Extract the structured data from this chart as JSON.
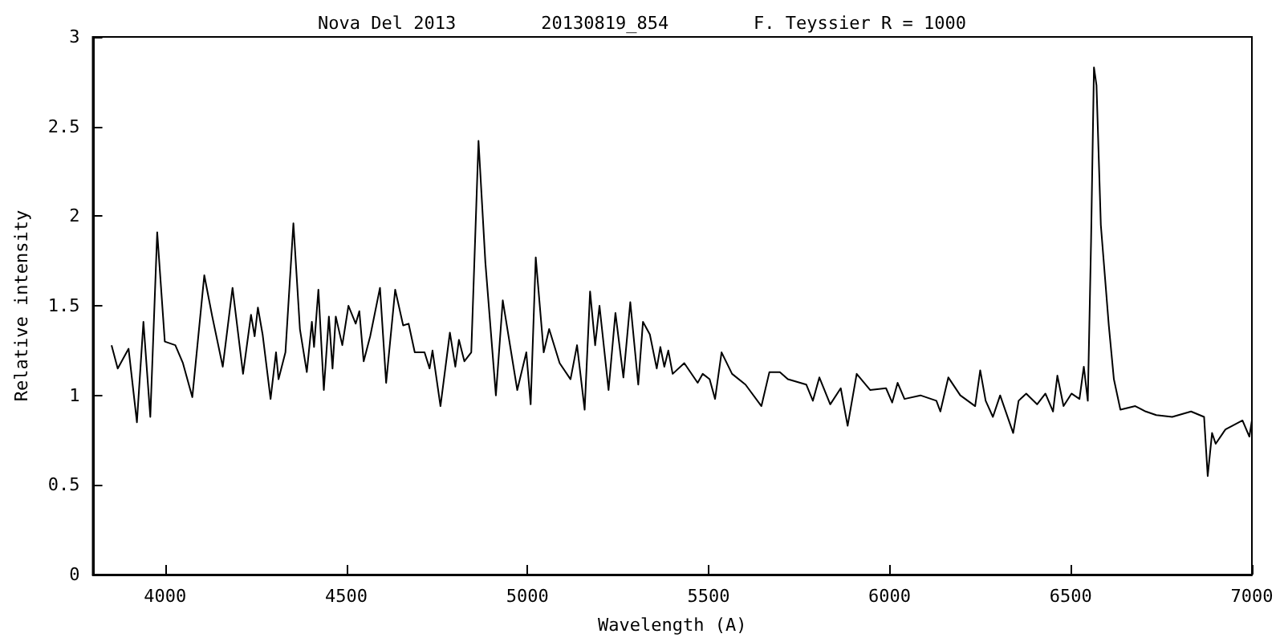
{
  "chart_data": {
    "type": "line",
    "title": "Nova Del 2013        20130819_854        F. Teyssier R = 1000",
    "xlabel": "Wavelength (A)",
    "ylabel": "Relative intensity",
    "xlim": [
      3800,
      7000
    ],
    "xticks": [
      4000,
      4500,
      5000,
      5500,
      6000,
      6500,
      7000
    ],
    "ylim": [
      0,
      3
    ],
    "yticks": [
      0,
      0.5,
      1,
      1.5,
      2,
      2.5,
      3
    ],
    "grid": false,
    "marker": "none",
    "line_style": "solid",
    "series": [
      {
        "color": "#000000",
        "x": [
          3852,
          3869,
          3899,
          3922,
          3940,
          3959,
          3978,
          3999,
          4028,
          4049,
          4075,
          4108,
          4130,
          4159,
          4186,
          4215,
          4237,
          4247,
          4256,
          4269,
          4291,
          4306,
          4313,
          4332,
          4354,
          4372,
          4391,
          4405,
          4411,
          4423,
          4438,
          4452,
          4462,
          4471,
          4489,
          4506,
          4526,
          4536,
          4548,
          4566,
          4593,
          4610,
          4635,
          4657,
          4672,
          4689,
          4716,
          4730,
          4738,
          4760,
          4786,
          4801,
          4811,
          4826,
          4845,
          4865,
          4884,
          4913,
          4932,
          4972,
          4997,
          5009,
          5023,
          5045,
          5060,
          5089,
          5119,
          5137,
          5158,
          5173,
          5187,
          5199,
          5224,
          5243,
          5265,
          5284,
          5306,
          5319,
          5338,
          5357,
          5367,
          5378,
          5389,
          5401,
          5433,
          5470,
          5484,
          5503,
          5518,
          5536,
          5565,
          5602,
          5646,
          5668,
          5697,
          5719,
          5770,
          5788,
          5806,
          5836,
          5865,
          5884,
          5909,
          5946,
          5990,
          6007,
          6022,
          6041,
          6085,
          6129,
          6140,
          6162,
          6195,
          6236,
          6250,
          6265,
          6285,
          6305,
          6341,
          6356,
          6377,
          6407,
          6430,
          6451,
          6463,
          6480,
          6502,
          6524,
          6536,
          6547,
          6556,
          6564,
          6571,
          6583,
          6605,
          6619,
          6637,
          6678,
          6707,
          6736,
          6780,
          6832,
          6868,
          6878,
          6890,
          6900,
          6927,
          6974,
          6993,
          7000
        ],
        "values": [
          1.28,
          1.15,
          1.26,
          0.85,
          1.41,
          0.88,
          1.91,
          1.3,
          1.28,
          1.18,
          0.99,
          1.67,
          1.44,
          1.16,
          1.6,
          1.12,
          1.45,
          1.33,
          1.49,
          1.34,
          0.98,
          1.24,
          1.09,
          1.24,
          1.96,
          1.37,
          1.13,
          1.41,
          1.27,
          1.59,
          1.03,
          1.44,
          1.15,
          1.44,
          1.28,
          1.5,
          1.4,
          1.47,
          1.19,
          1.33,
          1.6,
          1.07,
          1.59,
          1.39,
          1.4,
          1.24,
          1.24,
          1.15,
          1.25,
          0.94,
          1.35,
          1.16,
          1.31,
          1.19,
          1.24,
          2.42,
          1.74,
          1.0,
          1.53,
          1.03,
          1.24,
          0.95,
          1.77,
          1.24,
          1.37,
          1.18,
          1.09,
          1.28,
          0.92,
          1.58,
          1.28,
          1.5,
          1.03,
          1.46,
          1.1,
          1.52,
          1.06,
          1.41,
          1.34,
          1.15,
          1.27,
          1.16,
          1.25,
          1.12,
          1.18,
          1.07,
          1.12,
          1.09,
          0.98,
          1.24,
          1.12,
          1.06,
          0.94,
          1.13,
          1.13,
          1.09,
          1.06,
          0.97,
          1.1,
          0.95,
          1.04,
          0.83,
          1.12,
          1.03,
          1.04,
          0.96,
          1.07,
          0.98,
          1.0,
          0.97,
          0.91,
          1.1,
          1.0,
          0.94,
          1.14,
          0.97,
          0.88,
          1.0,
          0.79,
          0.97,
          1.01,
          0.95,
          1.01,
          0.91,
          1.11,
          0.94,
          1.01,
          0.98,
          1.16,
          0.97,
          1.86,
          2.83,
          2.73,
          1.95,
          1.39,
          1.09,
          0.92,
          0.94,
          0.91,
          0.89,
          0.88,
          0.91,
          0.88,
          0.55,
          0.79,
          0.73,
          0.81,
          0.86,
          0.77,
          0.86
        ]
      }
    ]
  }
}
